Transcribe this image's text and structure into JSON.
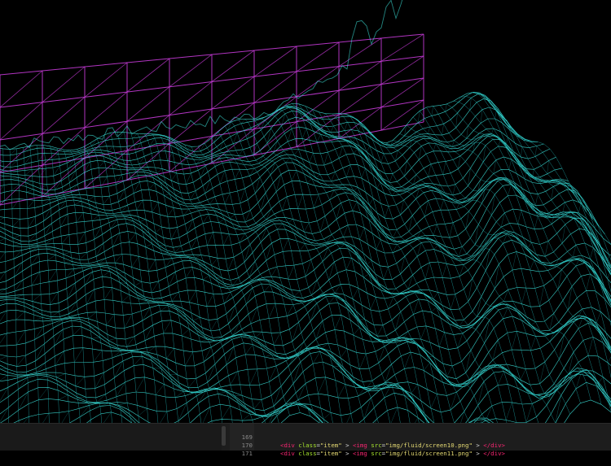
{
  "scene": {
    "mesh_color": "#3ff2ea",
    "mesh_color_dim": "#1fb5b8",
    "grid_color": "#c43ad6",
    "background": "#000000"
  },
  "editor": {
    "lines": [
      {
        "number": "169",
        "indent": "    ",
        "open_tag": "<div",
        "attr1": "class",
        "eq1": "=",
        "val1": "\"item\"",
        "sp1": " > ",
        "img_tag": "<img",
        "attr2": "src",
        "eq2": "=",
        "val2": "\"img/fluid/screen10.png\"",
        "sp2": " > ",
        "close_tag": "</div>"
      },
      {
        "number": "170",
        "indent": "    ",
        "open_tag": "<div",
        "attr1": "class",
        "eq1": "=",
        "val1": "\"item\"",
        "sp1": " > ",
        "img_tag": "<img",
        "attr2": "src",
        "eq2": "=",
        "val2": "\"img/fluid/screen11.png\"",
        "sp2": " > ",
        "close_tag": "</div>"
      },
      {
        "number": "171"
      }
    ]
  }
}
